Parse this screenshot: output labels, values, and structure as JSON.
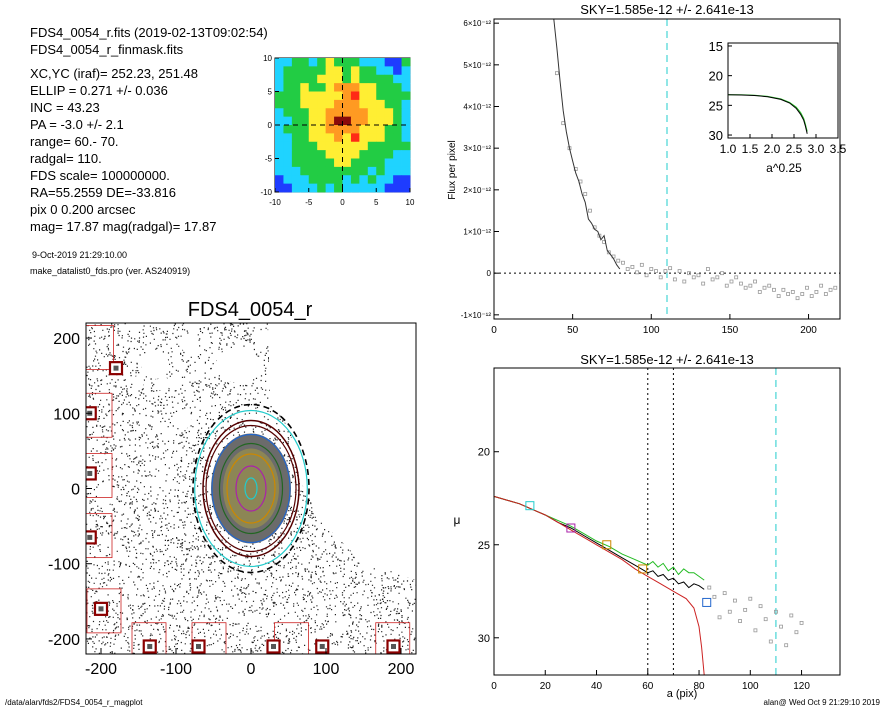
{
  "header": {
    "lines": [
      "FDS4_0054_r.fits  (2019-02-13T09:02:54)",
      "FDS4_0054_r_finmask.fits",
      "XC,YC (iraf)=   252.23, 251.48",
      "ELLIP = 0.271 +/- 0.036",
      "INC   = 43.23",
      "PA    = -3.0 +/-   2.1",
      "range=  60.-   70.",
      "radgal=  110.",
      "FDS scale=  100000000.",
      "RA=55.2559   DE=-33.816",
      "pix 0 0.200 arcsec",
      "mag=  17.87  mag(radgal)=  17.87"
    ],
    "date": "9-Oct-2019 21:29:10.00",
    "program": "make_datalist0_fds.pro (ver. AS240919)"
  },
  "footer": {
    "path": "/data/alan/fds2/FDS4_0054_r_magplot",
    "stamp": "alan@  Wed Oct  9 21:29:10 2019"
  },
  "colors": {
    "mask": "#cc2222",
    "iso_black": "#000000",
    "cyan": "#22cccc",
    "green": "#22bb22",
    "grey": "#999999",
    "star_box": "#8b0000"
  },
  "chart_data": [
    {
      "id": "thumbnail",
      "type": "heatmap",
      "title": "",
      "xlim": [
        -10,
        10
      ],
      "ylim": [
        -10,
        10
      ],
      "xticks": [
        "-10",
        "-5",
        "0",
        "5",
        "10"
      ],
      "yticks": [
        "10",
        "5",
        "0",
        "-5",
        "-10"
      ],
      "levels": [
        "#1e3cff",
        "#1fd3ff",
        "#22cc44",
        "#ffee33",
        "#ff9a22",
        "#ff2a16",
        "#8a0a0a"
      ],
      "grid": [
        [
          1,
          1,
          2,
          2,
          1,
          2,
          3,
          2,
          2,
          2,
          1,
          1,
          1,
          0,
          0,
          2
        ],
        [
          1,
          2,
          2,
          2,
          2,
          2,
          3,
          3,
          2,
          3,
          2,
          2,
          1,
          1,
          0,
          1
        ],
        [
          1,
          2,
          2,
          2,
          2,
          3,
          3,
          3,
          2,
          3,
          2,
          2,
          2,
          2,
          1,
          1
        ],
        [
          1,
          2,
          2,
          3,
          2,
          2,
          3,
          4,
          4,
          4,
          3,
          3,
          2,
          2,
          2,
          1
        ],
        [
          2,
          2,
          2,
          3,
          3,
          3,
          3,
          3,
          4,
          5,
          3,
          3,
          2,
          2,
          2,
          2
        ],
        [
          2,
          2,
          2,
          3,
          3,
          3,
          3,
          4,
          4,
          4,
          3,
          3,
          3,
          2,
          2,
          1
        ],
        [
          1,
          2,
          2,
          2,
          3,
          3,
          4,
          4,
          4,
          4,
          4,
          3,
          3,
          3,
          2,
          1
        ],
        [
          1,
          1,
          2,
          2,
          3,
          3,
          4,
          6,
          6,
          4,
          4,
          3,
          3,
          3,
          2,
          1
        ],
        [
          1,
          2,
          2,
          2,
          3,
          3,
          4,
          4,
          4,
          4,
          3,
          3,
          3,
          2,
          2,
          1
        ],
        [
          1,
          1,
          2,
          2,
          3,
          3,
          3,
          4,
          3,
          5,
          3,
          3,
          3,
          2,
          2,
          1
        ],
        [
          1,
          1,
          2,
          2,
          2,
          3,
          3,
          3,
          3,
          3,
          3,
          2,
          2,
          2,
          2,
          2
        ],
        [
          1,
          1,
          2,
          2,
          2,
          2,
          3,
          3,
          3,
          3,
          2,
          2,
          2,
          2,
          1,
          1
        ],
        [
          1,
          1,
          2,
          2,
          2,
          2,
          2,
          3,
          3,
          2,
          2,
          2,
          2,
          1,
          1,
          1
        ],
        [
          1,
          1,
          1,
          2,
          2,
          2,
          2,
          2,
          2,
          2,
          2,
          1,
          2,
          1,
          1,
          1
        ],
        [
          0,
          1,
          1,
          1,
          2,
          2,
          2,
          2,
          1,
          2,
          1,
          2,
          1,
          1,
          0,
          0
        ],
        [
          0,
          0,
          1,
          1,
          1,
          2,
          1,
          2,
          1,
          1,
          1,
          1,
          1,
          0,
          0,
          0
        ]
      ]
    },
    {
      "id": "image",
      "type": "scatter",
      "title": "FDS4_0054_r",
      "xlim": [
        -220,
        220
      ],
      "ylim": [
        -220,
        220
      ],
      "xticks": [
        "-200",
        "-100",
        "0",
        "100",
        "200"
      ],
      "yticks": [
        "200",
        "100",
        "0",
        "-100",
        "-200"
      ],
      "grid": false,
      "center": [
        0,
        0
      ],
      "ellipse_axes": [
        [
          8,
          14
        ],
        [
          20,
          30
        ],
        [
          32,
          46
        ],
        [
          42,
          60
        ],
        [
          52,
          72
        ],
        [
          60,
          84
        ],
        [
          75,
          104
        ]
      ],
      "ellipse_axis_units": "pixel semi-axes [minor, major]",
      "star_boxes": [
        [
          -180,
          160
        ],
        [
          -215,
          100
        ],
        [
          -215,
          20
        ],
        [
          -215,
          -65
        ],
        [
          -200,
          -160
        ],
        [
          -135,
          -210
        ],
        [
          -70,
          -210
        ],
        [
          30,
          -210
        ],
        [
          95,
          -210
        ],
        [
          190,
          -210
        ]
      ],
      "mask_boxes": [
        [
          -210,
          190
        ],
        [
          -212,
          100
        ],
        [
          -212,
          20
        ],
        [
          -212,
          -60
        ],
        [
          -200,
          -160
        ],
        [
          -140,
          -205
        ],
        [
          -60,
          -205
        ],
        [
          50,
          -205
        ],
        [
          185,
          -205
        ]
      ]
    },
    {
      "id": "flux",
      "type": "line",
      "title": "SKY=1.585e-12 +/- 2.641e-13",
      "xlabel": "",
      "ylabel": "Flux per pixel",
      "xlim": [
        0,
        220
      ],
      "ylim": [
        -1.1e-12,
        6.1e-12
      ],
      "xticks": [
        "0",
        "50",
        "100",
        "150",
        "200"
      ],
      "yticks": [
        "6×10⁻¹²",
        "5×10⁻¹²",
        "4×10⁻¹²",
        "3×10⁻¹²",
        "2×10⁻¹²",
        "1×10⁻¹²",
        "0",
        "-1×10⁻¹²"
      ],
      "ytick_values": [
        6e-12,
        5e-12,
        4e-12,
        3e-12,
        2e-12,
        1e-12,
        0,
        -1e-12
      ],
      "xtick_values": [
        0,
        50,
        100,
        150,
        200
      ],
      "vline_x": 110,
      "hline_y": 0,
      "profile": {
        "x": [
          38,
          40,
          42,
          44,
          46,
          48,
          50,
          52,
          54,
          56,
          58,
          60,
          62,
          64,
          66,
          68,
          70,
          72,
          74,
          76,
          78,
          80
        ],
        "y": [
          6.1e-12,
          5.4e-12,
          4.6e-12,
          3.9e-12,
          3.4e-12,
          3e-12,
          2.7e-12,
          2.4e-12,
          2.2e-12,
          1.9e-12,
          1.7e-12,
          1.3e-12,
          1.2e-12,
          1.05e-12,
          1e-12,
          8e-13,
          9e-13,
          5.5e-13,
          4.5e-13,
          3.5e-13,
          2e-13,
          1e-13
        ]
      },
      "points": {
        "x": [
          40,
          44,
          48,
          52,
          55,
          58,
          61,
          64,
          67,
          70,
          73,
          76,
          79,
          82,
          85,
          88,
          91,
          94,
          97,
          100,
          103,
          106,
          109,
          112,
          115,
          118,
          121,
          124,
          127,
          130,
          133,
          136,
          139,
          142,
          145,
          148,
          151,
          154,
          157,
          160,
          163,
          166,
          169,
          172,
          175,
          178,
          181,
          184,
          187,
          190,
          193,
          196,
          199,
          202,
          205,
          208,
          211,
          214,
          217
        ],
        "y": [
          4.8e-12,
          3.6e-12,
          3e-12,
          2.5e-12,
          2.2e-12,
          1.9e-12,
          1.5e-12,
          1.1e-12,
          9e-13,
          7.5e-13,
          5e-13,
          4e-13,
          3e-13,
          2.5e-13,
          1e-13,
          1.5e-13,
          2e-14,
          2e-13,
          -5e-14,
          1e-13,
          5e-14,
          -1e-13,
          5e-14,
          1.2e-13,
          -1.5e-13,
          5e-14,
          -2e-13,
          0.0,
          -1e-13,
          -5e-14,
          -2.5e-13,
          1e-13,
          -1.5e-13,
          -1e-13,
          0.0,
          -3e-13,
          -2e-13,
          -1e-13,
          -2.5e-13,
          -3.5e-13,
          -3e-13,
          -2e-13,
          -4.5e-13,
          -3.5e-13,
          -3e-13,
          -4e-13,
          -5.5e-13,
          -4e-13,
          -5e-13,
          -4.5e-13,
          -6e-13,
          -5e-13,
          -3.5e-13,
          -5.5e-13,
          -4.5e-13,
          -3e-13,
          -5e-13,
          -4e-13,
          -3.5e-13
        ]
      }
    },
    {
      "id": "inset",
      "type": "line",
      "title": "",
      "xlabel": "a^0.25",
      "xlim": [
        1.0,
        3.5
      ],
      "ylim": [
        30.5,
        14.5
      ],
      "xticks": [
        "1.0",
        "1.5",
        "2.0",
        "2.5",
        "3.0",
        "3.5"
      ],
      "xtick_values": [
        1.0,
        1.5,
        2.0,
        2.5,
        3.0,
        3.5
      ],
      "yticks": [
        "15",
        "20",
        "25",
        "30"
      ],
      "ytick_values": [
        15,
        20,
        25,
        30
      ],
      "series": [
        {
          "color": "#22bb22",
          "x": [
            1.0,
            1.3,
            1.6,
            1.9,
            2.2,
            2.4,
            2.55,
            2.65,
            2.72,
            2.76,
            2.8
          ],
          "y": [
            23.2,
            23.2,
            23.3,
            23.5,
            23.9,
            24.5,
            25.3,
            26.2,
            27.2,
            28.2,
            29.4
          ]
        },
        {
          "color": "#000000",
          "x": [
            1.0,
            1.3,
            1.6,
            1.9,
            2.2,
            2.4,
            2.55,
            2.65,
            2.72,
            2.76,
            2.8
          ],
          "y": [
            23.2,
            23.25,
            23.35,
            23.55,
            24.0,
            24.6,
            25.5,
            26.5,
            27.5,
            28.5,
            29.8
          ]
        }
      ]
    },
    {
      "id": "mu",
      "type": "line",
      "title": "SKY=1.585e-12 +/- 2.641e-13",
      "xlabel": "a (pix)",
      "ylabel": "μ",
      "xlim": [
        0,
        135
      ],
      "ylim": [
        32,
        15.5
      ],
      "xticks": [
        "0",
        "20",
        "40",
        "60",
        "80",
        "100",
        "120"
      ],
      "xtick_values": [
        0,
        20,
        40,
        60,
        80,
        100,
        120
      ],
      "yticks": [
        "20",
        "25",
        "30"
      ],
      "ytick_values": [
        20,
        25,
        30
      ],
      "vlines_dotted": [
        60,
        70
      ],
      "vline_dashed": 110,
      "series": [
        {
          "color": "#000000",
          "x": [
            0,
            5,
            10,
            15,
            20,
            25,
            30,
            35,
            40,
            45,
            50,
            55,
            60,
            62,
            64,
            66,
            68,
            70,
            72,
            74,
            76,
            78,
            80,
            82
          ],
          "y": [
            22.4,
            22.6,
            22.8,
            23.1,
            23.4,
            23.8,
            24.1,
            24.5,
            24.9,
            25.3,
            25.7,
            26.1,
            26.5,
            26.4,
            26.7,
            26.6,
            26.9,
            26.8,
            27.1,
            27.0,
            27.3,
            27.1,
            27.2,
            27.4
          ]
        },
        {
          "color": "#22bb22",
          "x": [
            0,
            5,
            10,
            15,
            20,
            25,
            30,
            35,
            40,
            45,
            50,
            55,
            60,
            62,
            64,
            66,
            68,
            70,
            72,
            74,
            76,
            78,
            80,
            82
          ],
          "y": [
            22.4,
            22.6,
            22.8,
            23.1,
            23.4,
            23.7,
            24.0,
            24.4,
            24.8,
            25.1,
            25.5,
            25.8,
            26.1,
            25.9,
            26.2,
            26.0,
            26.4,
            26.2,
            26.6,
            26.3,
            26.5,
            26.5,
            26.7,
            26.9
          ]
        },
        {
          "color": "#cc2222",
          "x": [
            0,
            5,
            10,
            15,
            20,
            25,
            30,
            35,
            40,
            45,
            50,
            55,
            60,
            65,
            70,
            75,
            78,
            80,
            81,
            82
          ],
          "y": [
            22.4,
            22.6,
            22.8,
            23.1,
            23.4,
            23.8,
            24.2,
            24.6,
            25.0,
            25.4,
            25.8,
            26.3,
            26.7,
            27.1,
            27.5,
            27.9,
            28.4,
            29.4,
            30.5,
            32.0
          ]
        }
      ],
      "markers": [
        {
          "color": "#22cccc",
          "x": 14,
          "y": 22.9
        },
        {
          "color": "#aa22aa",
          "x": 30,
          "y": 24.1
        },
        {
          "color": "#cc8800",
          "x": 44,
          "y": 25.0
        },
        {
          "color": "#cc8800",
          "x": 58,
          "y": 26.3
        },
        {
          "color": "#2266cc",
          "x": 83,
          "y": 28.1
        }
      ],
      "points": {
        "x": [
          84,
          86,
          88,
          90,
          92,
          94,
          96,
          98,
          100,
          102,
          104,
          106,
          108,
          110,
          112,
          114,
          116,
          118,
          120
        ],
        "y": [
          27.3,
          27.8,
          28.9,
          27.6,
          28.6,
          28.0,
          29.1,
          28.5,
          27.9,
          29.6,
          28.3,
          29.0,
          30.2,
          28.6,
          29.4,
          30.4,
          28.8,
          29.7,
          29.2
        ]
      }
    }
  ]
}
